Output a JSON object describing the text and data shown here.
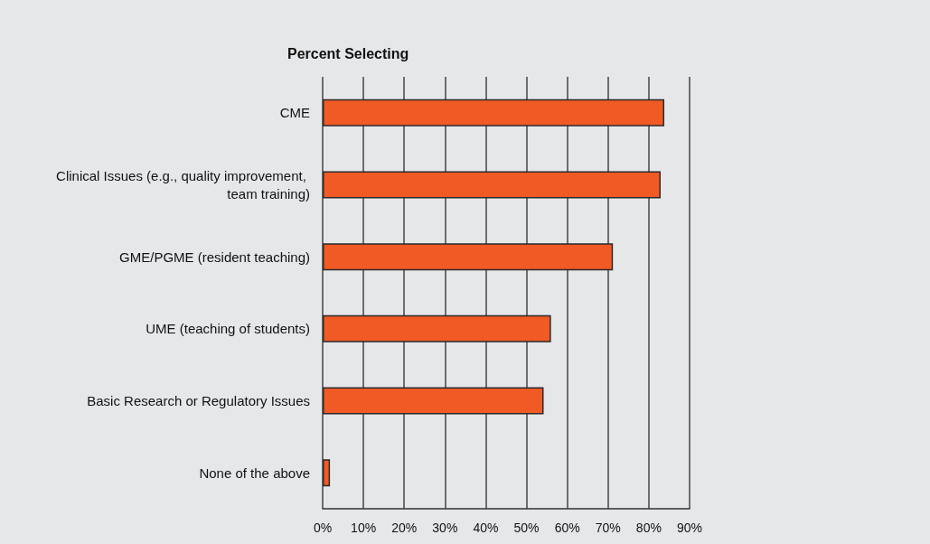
{
  "chart_data": {
    "type": "bar",
    "orientation": "horizontal",
    "title": "Percent Selecting",
    "categories": [
      "CME",
      "Clinical Issues (e.g., quality improvement, team training)",
      "GME/PGME (resident teaching)",
      "UME (teaching of students)",
      "Basic Research or Regulatory Issues",
      "None of the above"
    ],
    "values": [
      83.8,
      82.9,
      71.2,
      56.0,
      54.2,
      1.8
    ],
    "color": "#f15a24",
    "xlim": [
      0,
      90
    ],
    "xticks": [
      {
        "value": 0,
        "label": "0%"
      },
      {
        "value": 10,
        "label": "10%"
      },
      {
        "value": 20,
        "label": "20%"
      },
      {
        "value": 30,
        "label": "30%"
      },
      {
        "value": 40,
        "label": "40%"
      },
      {
        "value": 50,
        "label": "50%"
      },
      {
        "value": 60,
        "label": "60%"
      },
      {
        "value": 70,
        "label": "70%"
      },
      {
        "value": 80,
        "label": "80%"
      },
      {
        "value": 90,
        "label": "90%"
      }
    ],
    "grid": "x"
  }
}
